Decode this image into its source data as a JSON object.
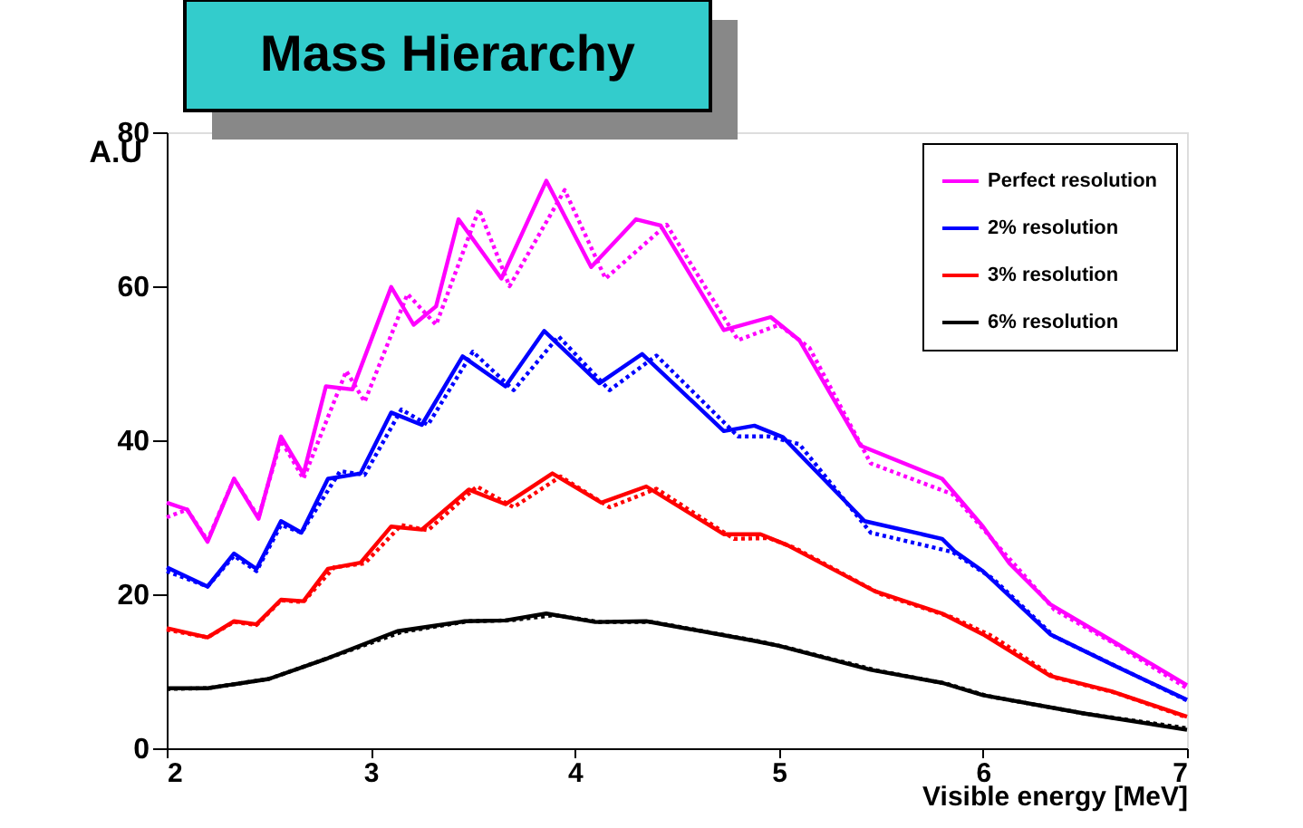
{
  "chart_data": {
    "type": "line",
    "title": "Mass Hierarchy",
    "xlabel": "Visible energy [MeV]",
    "ylabel": "A.U",
    "xlim": [
      2,
      7
    ],
    "xticks": [
      2,
      3,
      4,
      5,
      6,
      7
    ],
    "ylim": [
      0,
      80
    ],
    "yticks": [
      0,
      20,
      40,
      60,
      80
    ],
    "grid": false,
    "legend": "top right",
    "marker": "none",
    "series": [
      {
        "name": "Perfect resolution",
        "color": "#ff00ff",
        "line_style": "solid",
        "x": [
          2.0,
          2.1,
          2.2,
          2.33,
          2.45,
          2.56,
          2.67,
          2.78,
          2.91,
          3.1,
          3.21,
          3.32,
          3.43,
          3.64,
          3.86,
          4.08,
          4.3,
          4.42,
          4.73,
          4.96,
          5.1,
          5.4,
          5.8,
          6.0,
          6.13,
          6.33,
          6.63,
          7.0
        ],
        "values": [
          31.9,
          31,
          26.8,
          35,
          29.8,
          40.5,
          35.6,
          47,
          46.6,
          59.9,
          55,
          57.4,
          68.7,
          61,
          73.7,
          62.5,
          68.7,
          67.9,
          54.3,
          56,
          53,
          39.3,
          35,
          28.8,
          24,
          18.7,
          14,
          8.2
        ]
      },
      {
        "color": "#ff00ff",
        "line_style": "dotted",
        "x": [
          2.0,
          2.1,
          2.2,
          2.33,
          2.45,
          2.56,
          2.67,
          2.88,
          2.97,
          3.18,
          3.32,
          3.53,
          3.68,
          3.95,
          4.15,
          4.45,
          4.8,
          5.0,
          5.15,
          5.45,
          5.85,
          6.05,
          6.35,
          6.65,
          7.0
        ],
        "values": [
          30,
          31,
          27,
          35,
          30,
          40,
          35,
          49,
          45,
          59,
          55,
          70,
          60,
          72.5,
          61,
          68,
          53,
          55,
          52,
          37,
          33,
          27,
          18,
          13.5,
          7.8
        ]
      },
      {
        "name": "2% resolution",
        "color": "#0000ff",
        "line_style": "solid",
        "x": [
          2.0,
          2.2,
          2.33,
          2.44,
          2.56,
          2.66,
          2.79,
          2.95,
          3.1,
          3.25,
          3.45,
          3.66,
          3.85,
          4.12,
          4.33,
          4.73,
          4.88,
          5.02,
          5.42,
          5.8,
          5.86,
          6.0,
          6.33,
          6.63,
          7.0
        ],
        "values": [
          23.5,
          21,
          25.3,
          23.3,
          29.5,
          28,
          35,
          35.7,
          43.6,
          42,
          50.9,
          47,
          54.2,
          47.4,
          51.2,
          41.2,
          41.9,
          40.4,
          29.5,
          27.2,
          25.6,
          23,
          14.8,
          10.9,
          6.3
        ]
      },
      {
        "color": "#0000ff",
        "line_style": "dotted",
        "x": [
          2.0,
          2.2,
          2.33,
          2.44,
          2.56,
          2.66,
          2.85,
          2.97,
          3.15,
          3.28,
          3.5,
          3.7,
          3.92,
          4.17,
          4.4,
          4.8,
          4.95,
          5.1,
          5.45,
          5.85,
          6.05,
          6.35,
          6.65,
          7.0
        ],
        "values": [
          23,
          21,
          25,
          23,
          29,
          28,
          36,
          35.5,
          44,
          42,
          51.5,
          46.5,
          53.5,
          46.5,
          51,
          40.5,
          40.5,
          39.5,
          28,
          25.5,
          22,
          14.5,
          10.7,
          6.2
        ]
      },
      {
        "name": "3% resolution",
        "color": "#ff0000",
        "line_style": "solid",
        "x": [
          2.0,
          2.2,
          2.33,
          2.44,
          2.56,
          2.67,
          2.79,
          2.95,
          3.1,
          3.25,
          3.48,
          3.66,
          3.89,
          4.13,
          4.35,
          4.73,
          4.91,
          5.04,
          5.47,
          5.8,
          6.0,
          6.33,
          6.63,
          7.0
        ],
        "values": [
          15.6,
          14.4,
          16.5,
          16.1,
          19.3,
          19.1,
          23.3,
          24.1,
          28.8,
          28.4,
          33.6,
          31.7,
          35.7,
          31.9,
          34,
          27.8,
          27.8,
          26.4,
          20.4,
          17.5,
          14.8,
          9.4,
          7.4,
          4.1
        ]
      },
      {
        "color": "#ff0000",
        "line_style": "dotted",
        "x": [
          2.0,
          2.2,
          2.33,
          2.44,
          2.56,
          2.67,
          2.82,
          2.97,
          3.15,
          3.28,
          3.52,
          3.7,
          3.93,
          4.17,
          4.4,
          4.78,
          4.95,
          5.08,
          5.5,
          5.85,
          6.05,
          6.35,
          6.65,
          7.0
        ],
        "values": [
          15.4,
          14.4,
          16.4,
          16,
          19.2,
          19,
          23.5,
          24,
          29,
          28.3,
          34,
          31.3,
          35.3,
          31.3,
          33.7,
          27.2,
          27.3,
          26,
          20,
          17,
          14.5,
          9.2,
          7.2,
          4
        ]
      },
      {
        "name": "6% resolution",
        "color": "#000000",
        "line_style": "solid",
        "x": [
          2.0,
          2.2,
          2.5,
          2.79,
          3.13,
          3.46,
          3.66,
          3.86,
          4.1,
          4.35,
          4.87,
          5.0,
          5.45,
          5.8,
          6.0,
          6.5,
          7.0
        ],
        "values": [
          7.8,
          7.8,
          9,
          11.7,
          15.2,
          16.5,
          16.6,
          17.5,
          16.4,
          16.5,
          14,
          13.3,
          10.2,
          8.5,
          6.9,
          4.5,
          2.4
        ]
      },
      {
        "color": "#000000",
        "line_style": "dotted",
        "x": [
          2.0,
          2.2,
          2.5,
          2.8,
          3.15,
          3.48,
          3.68,
          3.9,
          4.12,
          4.38,
          4.9,
          5.02,
          5.48,
          5.82,
          6.02,
          6.5,
          7.0
        ],
        "values": [
          7.7,
          7.8,
          9,
          11.8,
          15.1,
          16.5,
          16.6,
          17.3,
          16.4,
          16.4,
          13.9,
          13.2,
          10.1,
          8.4,
          6.8,
          4.5,
          2.6
        ]
      }
    ]
  }
}
